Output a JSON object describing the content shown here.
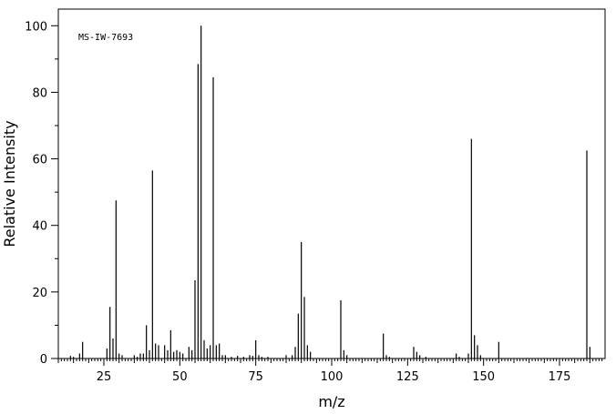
{
  "chart_data": {
    "type": "bar",
    "title": "",
    "annotation": "MS-IW-7693",
    "xlabel": "m/z",
    "ylabel": "Relative Intensity",
    "xlim": [
      10,
      190
    ],
    "ylim": [
      0,
      105
    ],
    "x_ticks": [
      25,
      50,
      75,
      100,
      125,
      150,
      175
    ],
    "y_ticks": [
      0,
      20,
      40,
      60,
      80,
      100
    ],
    "grid": false,
    "color": "#000000",
    "x": [
      14,
      15,
      17,
      18,
      26,
      27,
      28,
      29,
      30,
      31,
      35,
      36,
      37,
      38,
      39,
      40,
      41,
      42,
      43,
      45,
      46,
      47,
      48,
      49,
      50,
      51,
      53,
      54,
      55,
      56,
      57,
      58,
      59,
      60,
      61,
      62,
      63,
      64,
      65,
      67,
      69,
      71,
      73,
      74,
      75,
      76,
      77,
      79,
      85,
      87,
      88,
      89,
      90,
      91,
      92,
      93,
      103,
      104,
      105,
      117,
      118,
      119,
      127,
      128,
      129,
      131,
      141,
      142,
      145,
      146,
      147,
      148,
      149,
      155,
      184,
      185
    ],
    "values": [
      0.8,
      0.5,
      1.5,
      5.0,
      3.0,
      15.5,
      6.0,
      47.5,
      1.5,
      1.0,
      1.0,
      0.5,
      1.5,
      1.5,
      10.0,
      2.5,
      56.5,
      4.5,
      4.0,
      4.0,
      2.5,
      8.5,
      2.0,
      2.5,
      2.0,
      1.5,
      3.5,
      2.5,
      23.5,
      88.5,
      100.0,
      5.5,
      3.0,
      4.0,
      84.5,
      4.0,
      4.5,
      1.0,
      1.0,
      0.5,
      0.8,
      0.5,
      1.0,
      0.8,
      5.5,
      1.0,
      0.5,
      0.5,
      1.0,
      1.0,
      3.5,
      13.5,
      35.0,
      18.5,
      4.0,
      2.0,
      17.5,
      2.5,
      1.0,
      7.5,
      1.0,
      0.5,
      3.5,
      2.0,
      1.0,
      0.5,
      1.5,
      0.5,
      1.5,
      66.0,
      7.0,
      4.0,
      1.0,
      5.0,
      62.5,
      3.5
    ]
  }
}
